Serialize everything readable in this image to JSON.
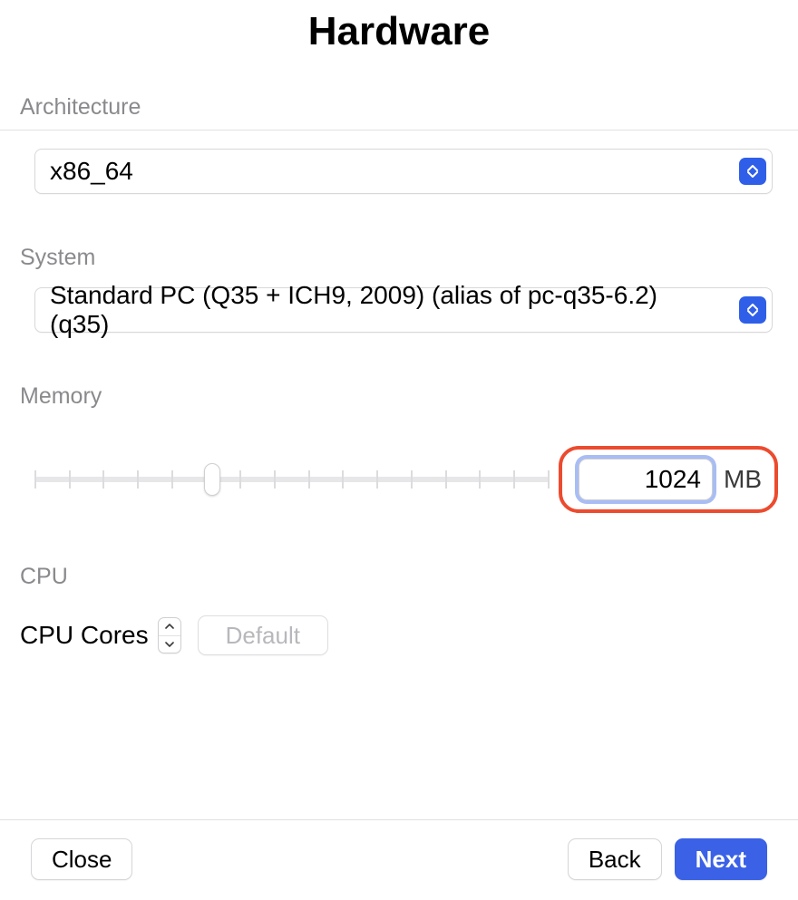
{
  "title": "Hardware",
  "architecture": {
    "label": "Architecture",
    "value": "x86_64"
  },
  "system": {
    "label": "System",
    "value": "Standard PC (Q35 + ICH9, 2009) (alias of pc-q35-6.2) (q35)"
  },
  "memory": {
    "label": "Memory",
    "value": "1024",
    "unit": "MB",
    "slider": {
      "ticks": 16,
      "thumb_position_pct": 34.5,
      "track_color": "#e7e7e9",
      "tick_color": "#dcdcde"
    },
    "highlight_color": "#ec4b2f",
    "focus_ring_color": "#a9bdf5"
  },
  "cpu": {
    "label": "CPU",
    "cores_label": "CPU Cores",
    "default_label": "Default"
  },
  "footer": {
    "close": "Close",
    "back": "Back",
    "next": "Next"
  },
  "colors": {
    "label_gray": "#8a8a8e",
    "accent": "#2f5fe8",
    "primary_button": "#3a61e6"
  }
}
